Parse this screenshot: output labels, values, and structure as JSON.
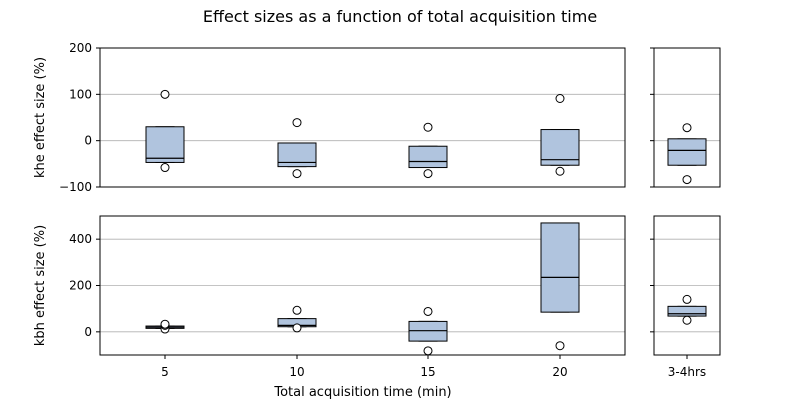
{
  "title": "Effect sizes as a function of total acquisition time",
  "chart_data": {
    "type": "box",
    "title": "Effect sizes as a function of total acquisition time",
    "xlabel": "Total acquisition time (min)",
    "categories": [
      "5",
      "10",
      "15",
      "20"
    ],
    "side_category": "3-4hrs",
    "grid": "y",
    "colors": {
      "box_fill": "#b0c4de",
      "edge": "#000000",
      "grid": "#b0b0b0"
    },
    "panels": [
      {
        "id": "khe",
        "ylabel": "khe effect size (%)",
        "ylim": [
          -100,
          200
        ],
        "yticks": [
          -100,
          0,
          100,
          200
        ],
        "tick_labels": [
          "−100",
          "0",
          "100",
          "200"
        ],
        "boxes": [
          {
            "category": "5",
            "q1": -47,
            "median": -38,
            "q3": 30,
            "whisker_low": -47,
            "whisker_high": 30,
            "fliers": [
              -58,
              100
            ]
          },
          {
            "category": "10",
            "q1": -56,
            "median": -47,
            "q3": -5,
            "whisker_low": -56,
            "whisker_high": -5,
            "fliers": [
              -71,
              39
            ]
          },
          {
            "category": "15",
            "q1": -58,
            "median": -45,
            "q3": -12,
            "whisker_low": -58,
            "whisker_high": -12,
            "fliers": [
              -71,
              29
            ]
          },
          {
            "category": "20",
            "q1": -53,
            "median": -41,
            "q3": 24,
            "whisker_low": -53,
            "whisker_high": 24,
            "fliers": [
              -66,
              91
            ]
          }
        ],
        "side_box": {
          "category": "3-4hrs",
          "q1": -53,
          "median": -21,
          "q3": 4,
          "whisker_low": -53,
          "whisker_high": 4,
          "fliers": [
            -84,
            28
          ]
        }
      },
      {
        "id": "kbh",
        "ylabel": "kbh effect size (%)",
        "ylim": [
          -100,
          500
        ],
        "yticks": [
          0,
          200,
          400
        ],
        "tick_labels": [
          "0",
          "200",
          "400"
        ],
        "boxes": [
          {
            "category": "5",
            "q1": 15,
            "median": 20,
            "q3": 25,
            "whisker_low": 15,
            "whisker_high": 25,
            "fliers": [
              12,
              28,
              33
            ]
          },
          {
            "category": "10",
            "q1": 22,
            "median": 28,
            "q3": 57,
            "whisker_low": 22,
            "whisker_high": 57,
            "fliers": [
              17,
              93
            ]
          },
          {
            "category": "15",
            "q1": -40,
            "median": 5,
            "q3": 45,
            "whisker_low": -40,
            "whisker_high": 45,
            "fliers": [
              -82,
              88
            ]
          },
          {
            "category": "20",
            "q1": 85,
            "median": 235,
            "q3": 470,
            "whisker_low": 85,
            "whisker_high": 470,
            "fliers": [
              -60
            ]
          }
        ],
        "side_box": {
          "category": "3-4hrs",
          "q1": 68,
          "median": 78,
          "q3": 110,
          "whisker_low": 68,
          "whisker_high": 110,
          "fliers": [
            50,
            140
          ]
        }
      }
    ]
  }
}
